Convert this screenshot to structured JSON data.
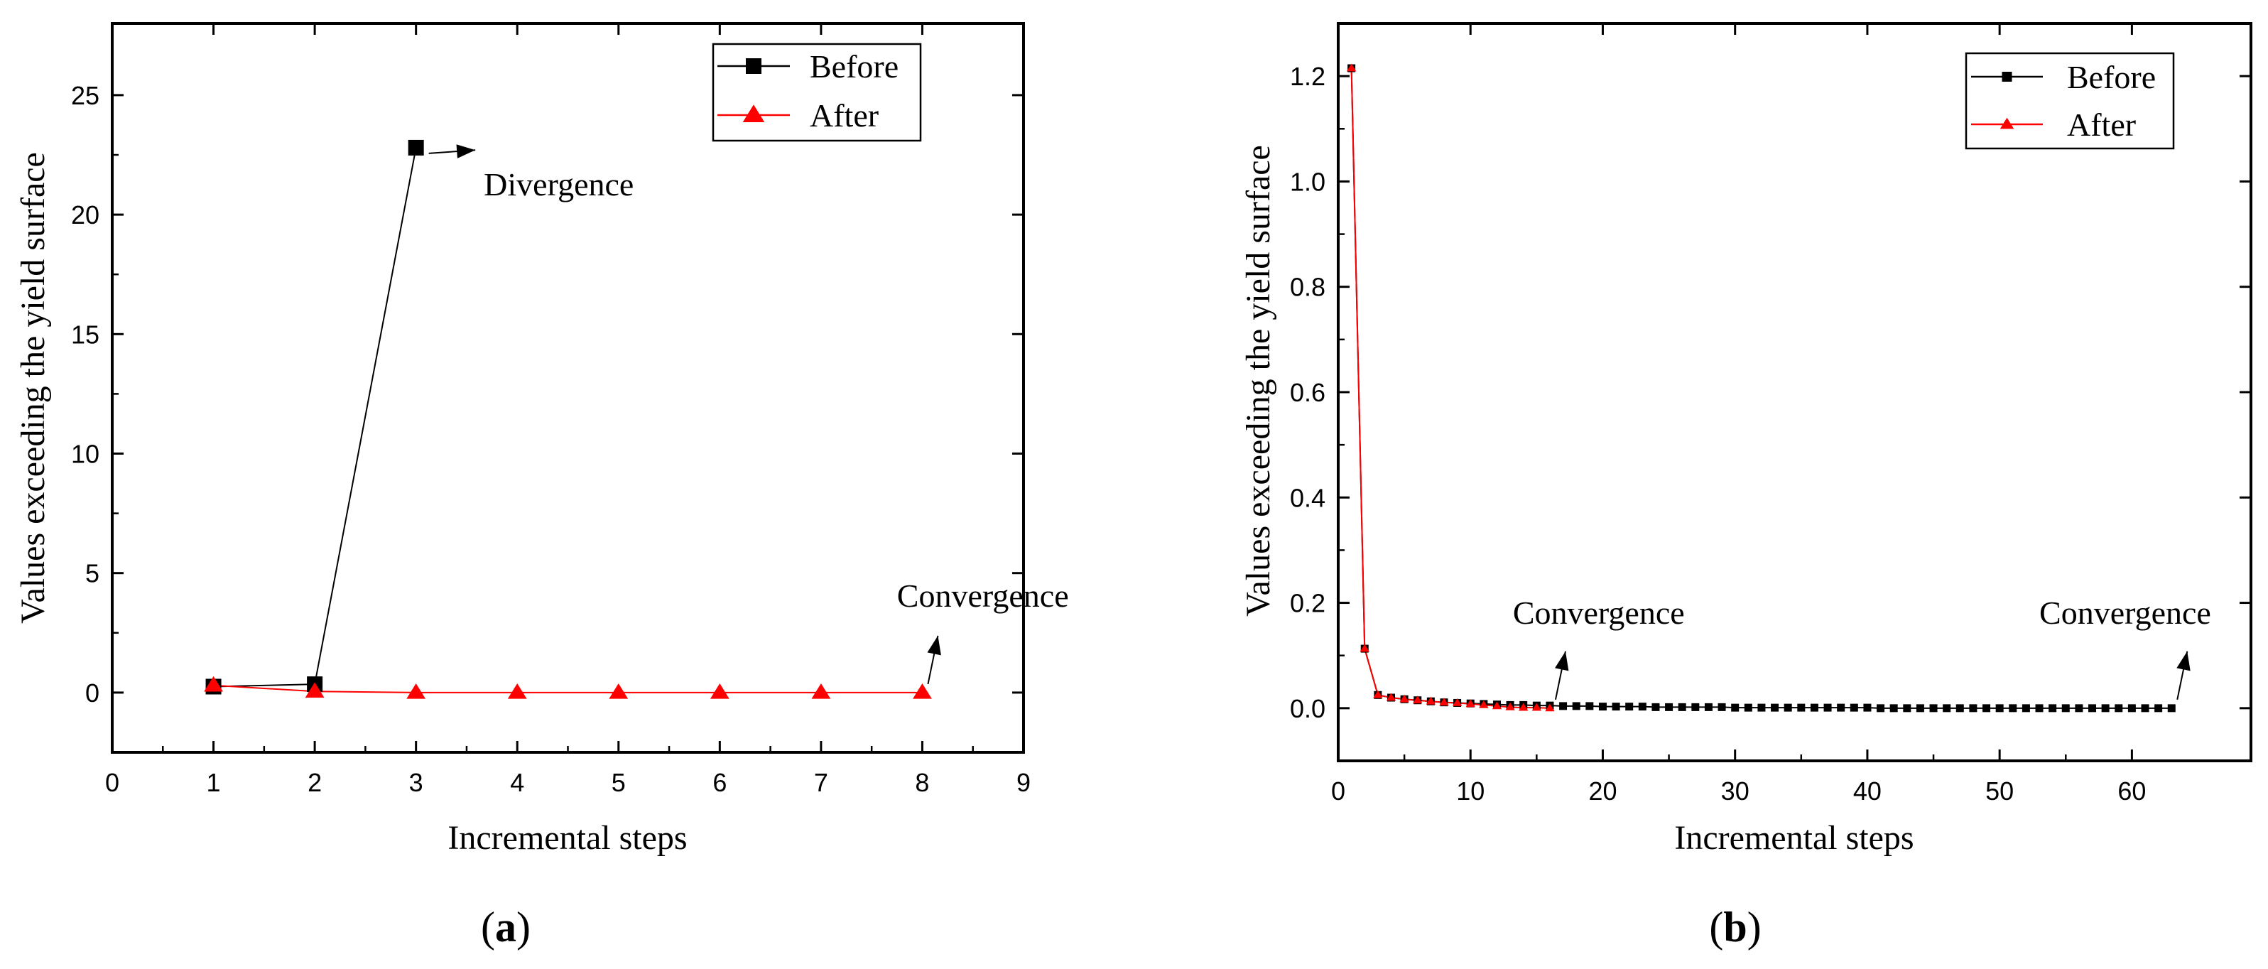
{
  "figure": {
    "panel_a_label": "a",
    "panel_b_label": "b"
  },
  "colors": {
    "before": "#000000",
    "after": "#ff0000",
    "axis": "#000000"
  },
  "chart_data": [
    {
      "type": "line",
      "panel": "a",
      "xlabel": "Incremental steps",
      "ylabel": "Values exceeding the yield surface",
      "xlim": [
        0,
        9
      ],
      "ylim": [
        -2.5,
        28
      ],
      "xticks": [
        0,
        1,
        2,
        3,
        4,
        5,
        6,
        7,
        8,
        9
      ],
      "yticks": [
        0,
        5,
        10,
        15,
        20,
        25
      ],
      "legend_position": "top-right",
      "series": [
        {
          "name": "Before",
          "marker": "square",
          "color": "#000000",
          "x": [
            1,
            2,
            3
          ],
          "y": [
            0.25,
            0.35,
            22.8
          ]
        },
        {
          "name": "After",
          "marker": "triangle",
          "color": "#ff0000",
          "x": [
            1,
            2,
            3,
            4,
            5,
            6,
            7,
            8
          ],
          "y": [
            0.3,
            0.05,
            0.0,
            0.0,
            0.0,
            0.0,
            0.0,
            0.0
          ]
        }
      ],
      "annotations": [
        {
          "text": "Divergence",
          "target_x": 3,
          "target_y": 22.8,
          "text_x": 3.67,
          "text_y": 20.8
        },
        {
          "text": "Convergence",
          "target_x": 8,
          "target_y": 0.0,
          "text_x": 7.75,
          "text_y": 3.6
        }
      ]
    },
    {
      "type": "line",
      "panel": "b",
      "xlabel": "Incremental steps",
      "ylabel": "Values exceeding the yield surface",
      "xlim": [
        0,
        69
      ],
      "ylim": [
        -0.1,
        1.3
      ],
      "xticks": [
        0,
        10,
        20,
        30,
        40,
        50,
        60
      ],
      "yticks": [
        0.0,
        0.2,
        0.4,
        0.6,
        0.8,
        1.0,
        1.2
      ],
      "ytick_decimals": 1,
      "legend_position": "top-right",
      "series": [
        {
          "name": "Before",
          "marker": "square",
          "color": "#000000",
          "x": [
            1,
            2,
            3,
            4,
            5,
            6,
            7,
            8,
            9,
            10,
            11,
            12,
            13,
            14,
            15,
            16,
            17,
            18,
            19,
            20,
            21,
            22,
            23,
            24,
            25,
            26,
            27,
            28,
            29,
            30,
            31,
            32,
            33,
            34,
            35,
            36,
            37,
            38,
            39,
            40,
            41,
            42,
            43,
            44,
            45,
            46,
            47,
            48,
            49,
            50,
            51,
            52,
            53,
            54,
            55,
            56,
            57,
            58,
            59,
            60,
            61,
            62,
            63
          ],
          "y": [
            1.215,
            0.113,
            0.025,
            0.02,
            0.017,
            0.015,
            0.013,
            0.011,
            0.01,
            0.009,
            0.008,
            0.007,
            0.006,
            0.006,
            0.005,
            0.005,
            0.004,
            0.004,
            0.004,
            0.003,
            0.003,
            0.003,
            0.003,
            0.002,
            0.002,
            0.002,
            0.002,
            0.002,
            0.002,
            0.001,
            0.001,
            0.001,
            0.001,
            0.001,
            0.001,
            0.001,
            0.001,
            0.001,
            0.001,
            0.001,
            0.0,
            0.0,
            0.0,
            0.0,
            0.0,
            0.0,
            0.0,
            0.0,
            0.0,
            0.0,
            0.0,
            0.0,
            0.0,
            0.0,
            0.0,
            0.0,
            0.0,
            0.0,
            0.0,
            0.0,
            0.0,
            0.0,
            0.0
          ]
        },
        {
          "name": "After",
          "marker": "triangle",
          "color": "#ff0000",
          "x": [
            1,
            2,
            3,
            4,
            5,
            6,
            7,
            8,
            9,
            10,
            11,
            12,
            13,
            14,
            15,
            16
          ],
          "y": [
            1.215,
            0.113,
            0.025,
            0.02,
            0.017,
            0.015,
            0.013,
            0.011,
            0.01,
            0.008,
            0.006,
            0.004,
            0.002,
            0.001,
            0.001,
            0.0
          ]
        }
      ],
      "annotations": [
        {
          "text": "Convergence",
          "target_x": 16,
          "target_y": 0.0,
          "text_x": 13.2,
          "text_y": 0.16
        },
        {
          "text": "Convergence",
          "target_x": 63,
          "target_y": 0.0,
          "text_x": 53,
          "text_y": 0.16
        }
      ]
    }
  ]
}
